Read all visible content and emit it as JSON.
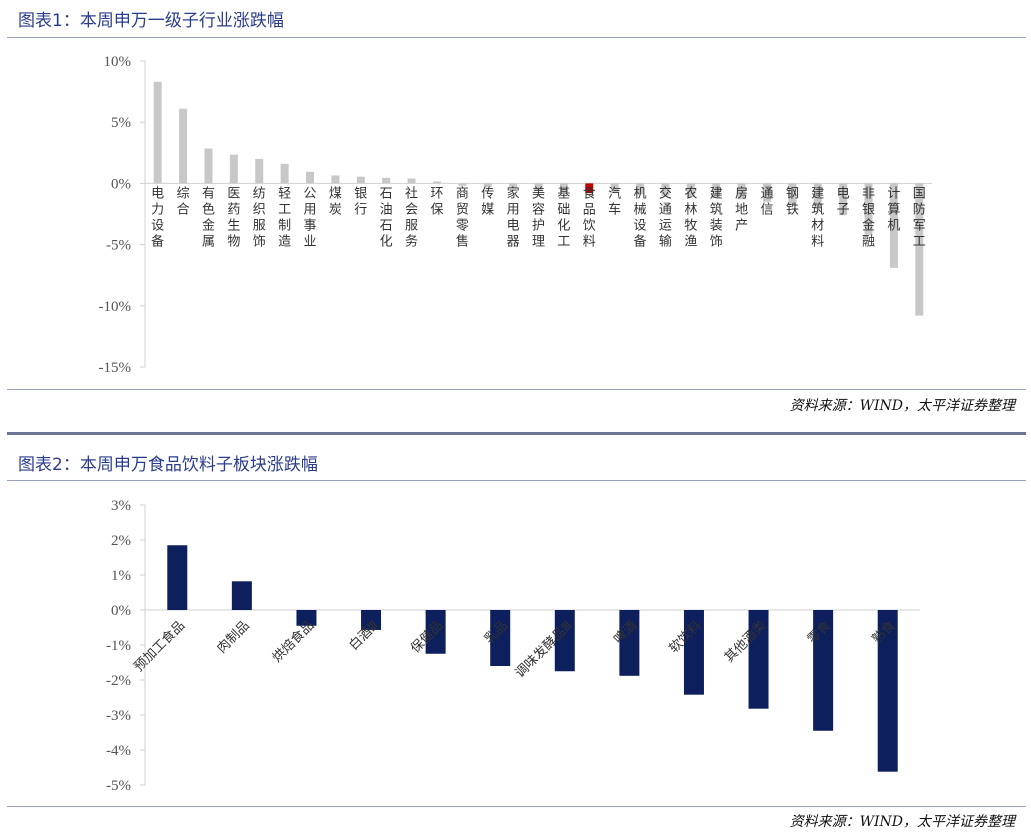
{
  "source_text": "资料来源：WIND，太平洋证券整理",
  "chart_data": [
    {
      "type": "bar",
      "title": "图表1：本周申万一级子行业涨跌幅",
      "xlabel": "",
      "ylabel": "",
      "ylim": [
        -15,
        10
      ],
      "yticks": [
        "10%",
        "5%",
        "0%",
        "-5%",
        "-10%",
        "-15%"
      ],
      "ytick_values": [
        10,
        5,
        0,
        -5,
        -10,
        -15
      ],
      "categories": [
        "电力设备",
        "综合",
        "有色金属",
        "医药生物",
        "纺织服饰",
        "轻工制造",
        "公用事业",
        "煤炭",
        "银行",
        "石油石化",
        "社会服务",
        "环保",
        "商贸零售",
        "传媒",
        "家用电器",
        "美容护理",
        "基础化工",
        "食品饮料",
        "汽车",
        "机械设备",
        "交通运输",
        "农林牧渔",
        "建筑装饰",
        "房地产",
        "通信",
        "钢铁",
        "建筑材料",
        "电子",
        "非银金融",
        "计算机",
        "国防军工"
      ],
      "values": [
        8.3,
        6.1,
        2.85,
        2.35,
        2.0,
        1.6,
        0.95,
        0.65,
        0.55,
        0.45,
        0.4,
        0.15,
        -0.2,
        -0.3,
        -0.4,
        -0.6,
        -0.7,
        -0.8,
        -0.8,
        -0.9,
        -1.0,
        -1.1,
        -1.2,
        -1.3,
        -1.5,
        -1.8,
        -2.1,
        -2.6,
        -4.2,
        -6.9,
        -10.8
      ],
      "bar_color": "#c8c8c8",
      "highlight_category": "食品饮料",
      "highlight_color": "#c00000",
      "grid": false,
      "legend": "none"
    },
    {
      "type": "bar",
      "title": "图表2：本周申万食品饮料子板块涨跌幅",
      "xlabel": "",
      "ylabel": "",
      "ylim": [
        -5,
        3
      ],
      "yticks": [
        "3%",
        "2%",
        "1%",
        "0%",
        "-1%",
        "-2%",
        "-3%",
        "-4%",
        "-5%"
      ],
      "ytick_values": [
        3,
        2,
        1,
        0,
        -1,
        -2,
        -3,
        -4,
        -5
      ],
      "categories": [
        "预加工食品",
        "肉制品",
        "烘焙食品",
        "白酒Ⅲ",
        "保健品",
        "乳品",
        "调味发酵品Ⅲ",
        "啤酒",
        "软饮料",
        "其他酒类",
        "零食",
        "熟食"
      ],
      "values": [
        1.85,
        0.82,
        -0.45,
        -0.57,
        -1.25,
        -1.6,
        -1.75,
        -1.88,
        -2.42,
        -2.82,
        -3.45,
        -4.62
      ],
      "bar_color": "#0d1f5c",
      "grid": false,
      "legend": "none"
    }
  ]
}
